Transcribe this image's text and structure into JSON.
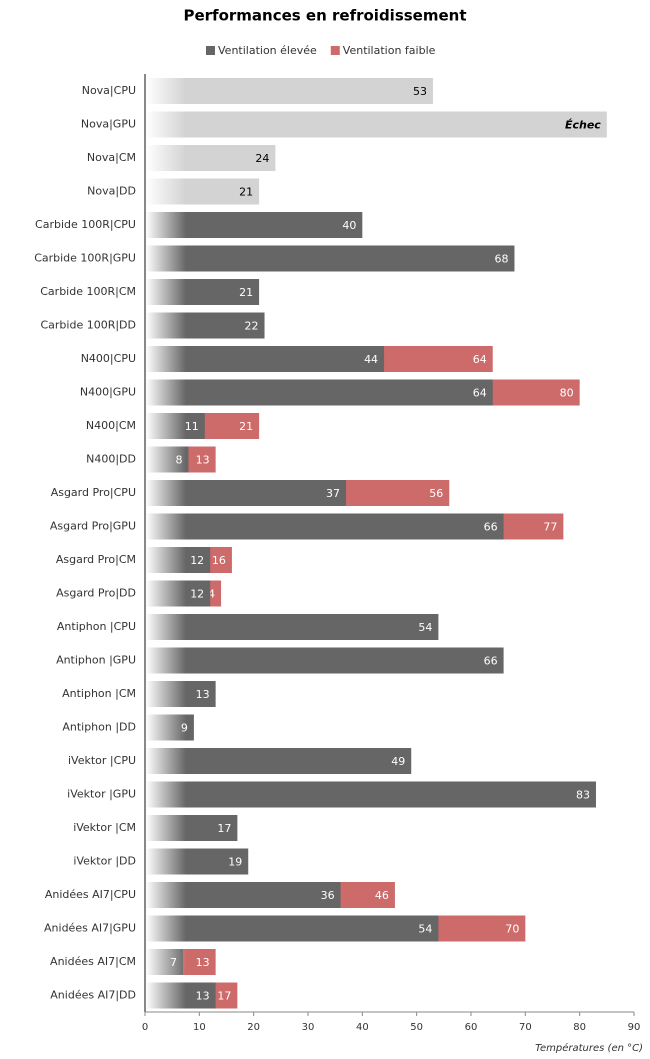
{
  "chart_data": {
    "type": "bar",
    "orientation": "horizontal",
    "overlap": true,
    "title": "Performances en refroidissement",
    "x_label": "Températures (en °C)",
    "categories": [
      "Nova|CPU",
      "Nova|GPU",
      "Nova|CM",
      "Nova|DD",
      "Carbide 100R|CPU",
      "Carbide 100R|GPU",
      "Carbide 100R|CM",
      "Carbide 100R|DD",
      "N400|CPU",
      "N400|GPU",
      "N400|CM",
      "N400|DD",
      "Asgard Pro|CPU",
      "Asgard Pro|GPU",
      "Asgard Pro|CM",
      "Asgard Pro|DD",
      "Antiphon |CPU",
      "Antiphon |GPU",
      "Antiphon |CM",
      "Antiphon |DD",
      "iVektor |CPU",
      "iVektor |GPU",
      "iVektor |CM",
      "iVektor |DD",
      "Anidées AI7|CPU",
      "Anidées AI7|GPU",
      "Anidées AI7|CM",
      "Anidées AI7|DD"
    ],
    "series": [
      {
        "name": "Ventilation faible",
        "color": "#cd6b6b",
        "values": [
          null,
          null,
          null,
          null,
          null,
          null,
          null,
          null,
          64,
          80,
          21,
          13,
          56,
          77,
          16,
          14,
          null,
          null,
          null,
          null,
          null,
          null,
          null,
          null,
          46,
          70,
          13,
          17
        ]
      },
      {
        "name": "Ventilation élevée",
        "color": "#666666",
        "point_colors": [
          "#d3d3d3",
          "#d3d3d3",
          "#d3d3d3",
          "#d3d3d3",
          "#666666",
          "#666666",
          "#666666",
          "#666666",
          "#666666",
          "#666666",
          "#666666",
          "#666666",
          "#666666",
          "#666666",
          "#666666",
          "#666666",
          "#666666",
          "#666666",
          "#666666",
          "#666666",
          "#666666",
          "#666666",
          "#666666",
          "#666666",
          "#666666",
          "#666666",
          "#666666",
          "#666666"
        ],
        "values": [
          53,
          null,
          24,
          21,
          40,
          68,
          21,
          22,
          44,
          64,
          11,
          8,
          37,
          66,
          12,
          12,
          54,
          66,
          13,
          9,
          49,
          83,
          17,
          19,
          36,
          54,
          7,
          13
        ]
      }
    ],
    "annotations": [
      {
        "text": "Échec",
        "category": 1,
        "value": 85,
        "color": "#d3d3d3"
      }
    ],
    "legend_order": [
      1,
      0
    ],
    "xlim": [
      0,
      90
    ],
    "xticks": [
      0,
      10,
      20,
      30,
      40,
      50,
      60,
      70,
      80,
      90
    ]
  }
}
